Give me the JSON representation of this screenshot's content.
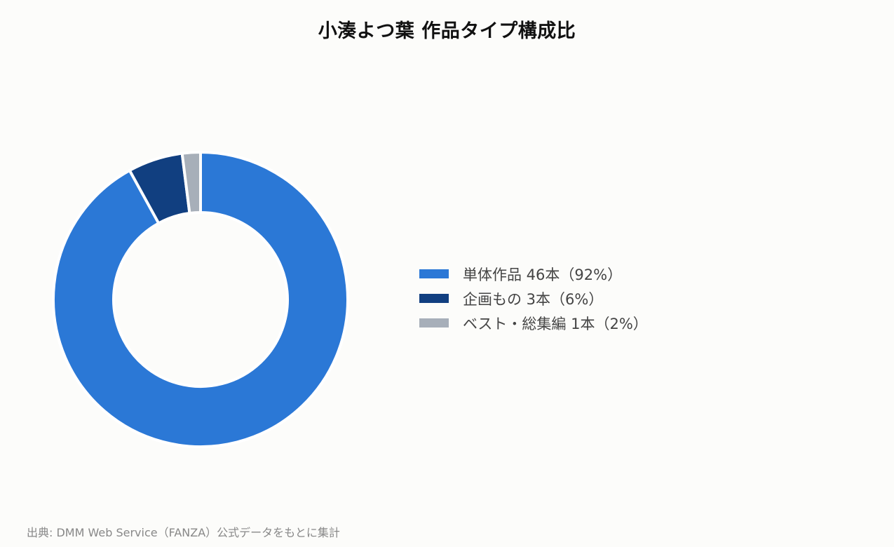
{
  "chart_data": {
    "type": "donut",
    "title": "小湊よつ葉 作品タイプ構成比",
    "categories": [
      "単体作品",
      "企画もの",
      "ベスト・総集編"
    ],
    "values": [
      46,
      3,
      1
    ],
    "percentages": [
      92,
      6,
      2
    ],
    "colors": [
      "#2b78d6",
      "#113f80",
      "#a7afb9"
    ],
    "legend_labels": [
      "単体作品 46本（92%）",
      "企画もの 3本（6%）",
      "ベスト・総集編 1本（2%）"
    ],
    "legend_position": "right"
  },
  "source": "出典: DMM Web Service（FANZA）公式データをもとに集計"
}
